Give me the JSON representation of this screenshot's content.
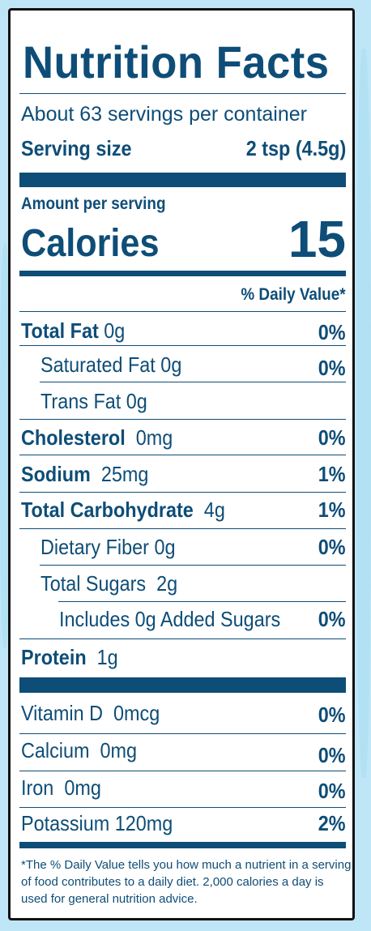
{
  "label": {
    "title": "Nutrition Facts",
    "servings_per_container": "About 63 servings per container",
    "serving_size_label": "Serving size",
    "serving_size_value": "2 tsp (4.5g)",
    "amount_per_serving": "Amount per serving",
    "calories_label": "Calories",
    "calories_value": "15",
    "daily_value_header": "% Daily Value*",
    "nutrients": {
      "total_fat": {
        "label": "Total Fat",
        "amount": "0g",
        "dv": "0%"
      },
      "saturated_fat": {
        "label": "Saturated Fat",
        "amount": "0g",
        "dv": "0%"
      },
      "trans_fat": {
        "label": "Trans Fat",
        "amount": "0g"
      },
      "cholesterol": {
        "label": "Cholesterol",
        "amount": "0mg",
        "dv": "0%"
      },
      "sodium": {
        "label": "Sodium",
        "amount": "25mg",
        "dv": "1%"
      },
      "total_carbohydrate": {
        "label": "Total Carbohydrate",
        "amount": "4g",
        "dv": "1%"
      },
      "dietary_fiber": {
        "label": "Dietary Fiber",
        "amount": "0g",
        "dv": "0%"
      },
      "total_sugars": {
        "label": "Total Sugars",
        "amount": "2g"
      },
      "added_sugars": {
        "label": "Includes 0g Added Sugars",
        "dv": "0%"
      },
      "protein": {
        "label": "Protein",
        "amount": "1g"
      }
    },
    "vitamins": {
      "vitamin_d": {
        "label": "Vitamin D",
        "amount": "0mcg",
        "dv": "0%"
      },
      "calcium": {
        "label": "Calcium",
        "amount": "0mg",
        "dv": "0%"
      },
      "iron": {
        "label": "Iron",
        "amount": "0mg",
        "dv": "0%"
      },
      "potassium": {
        "label": "Potassium",
        "amount": "120mg",
        "dv": "2%"
      }
    },
    "footnote": "*The % Daily Value tells you how much a nutrient in a serving of food contributes to a daily diet. 2,000 calories a day is used for general nutrition advice."
  },
  "colors": {
    "ink": "#0e4d77",
    "background": "#bfe6f7",
    "label_bg": "#ffffff",
    "border": "#111111"
  }
}
